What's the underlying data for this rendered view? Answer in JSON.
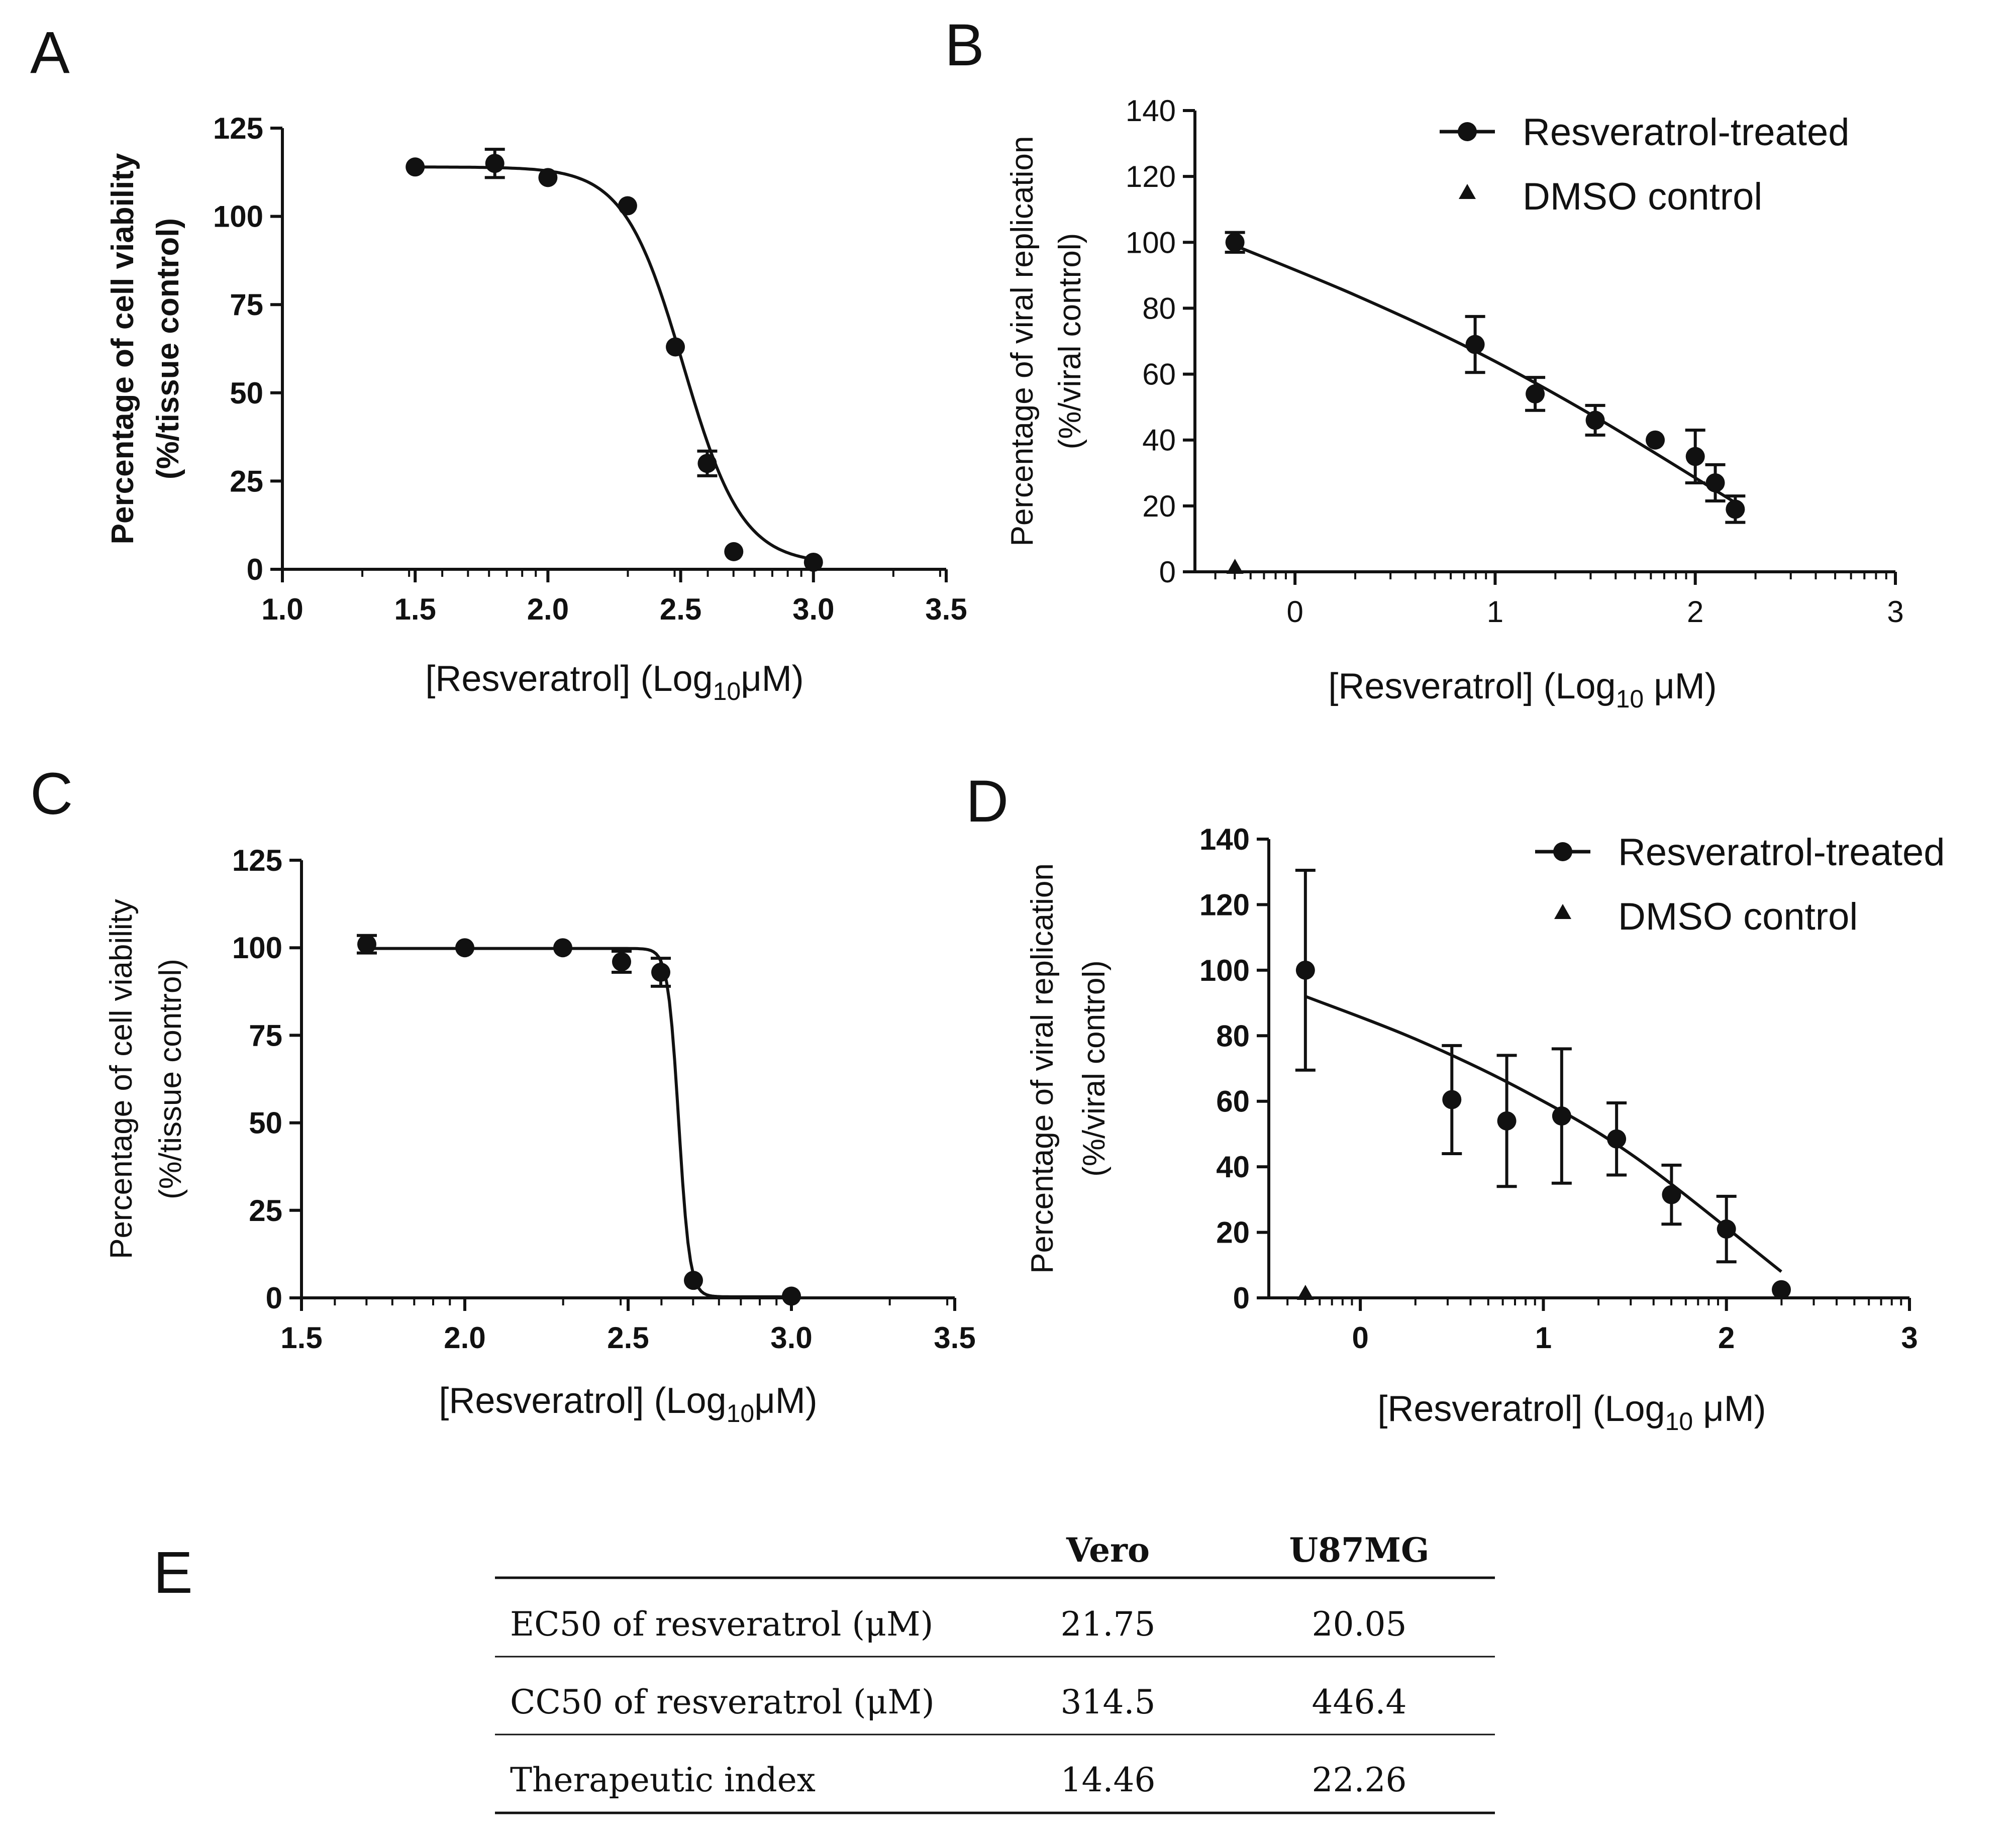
{
  "chart_data": [
    {
      "id": "A",
      "type": "scatter",
      "letter": "A",
      "title": "",
      "ylabel_line1": "Percentage of cell viability",
      "ylabel_line2": "(%/tissue control)",
      "ylabel_bold": true,
      "xlabel_main": "[Resveratrol] (Log",
      "xlabel_sub": "10",
      "xlabel_unit": "μM)",
      "xlim": [
        1.0,
        3.5
      ],
      "ylim": [
        0,
        125
      ],
      "xticks": [
        1.0,
        1.5,
        2.0,
        2.5,
        3.0,
        3.5
      ],
      "xtick_labels": [
        "1.0",
        "1.5",
        "2.0",
        "2.5",
        "3.0",
        "3.5"
      ],
      "yticks": [
        0,
        25,
        50,
        75,
        100,
        125
      ],
      "ytick_labels": [
        "0",
        "25",
        "50",
        "75",
        "100",
        "125"
      ],
      "tick_bold": true,
      "fit": {
        "model": "sigmoid",
        "top": 114,
        "bottom": 1.5,
        "center": 2.51,
        "slope": 9,
        "x_from": 1.5,
        "x_to": 3.0
      },
      "series": [
        {
          "name": "Cell viability",
          "marker": "circle",
          "x": [
            1.5,
            1.8,
            2.0,
            2.3,
            2.48,
            2.6,
            2.7,
            3.0
          ],
          "y": [
            114,
            115,
            111,
            103,
            63,
            30,
            5,
            2
          ],
          "err": [
            0,
            4,
            0,
            0,
            0,
            3.5,
            0,
            0
          ]
        }
      ]
    },
    {
      "id": "B",
      "type": "scatter",
      "letter": "B",
      "title": "",
      "ylabel_line1": "Percentage of viral replication",
      "ylabel_line2": "(%/viral control)",
      "ylabel_bold": false,
      "xlabel_main": "[Resveratrol] (Log",
      "xlabel_sub": "10",
      "xlabel_unit": " μM)",
      "xlim": [
        -0.5,
        3.0
      ],
      "ylim": [
        0,
        140
      ],
      "xticks": [
        0,
        1,
        2,
        3
      ],
      "xtick_labels": [
        "0",
        "1",
        "2",
        "3"
      ],
      "yticks": [
        0,
        20,
        40,
        60,
        80,
        100,
        120,
        140
      ],
      "ytick_labels": [
        "0",
        "20",
        "40",
        "60",
        "80",
        "100",
        "120",
        "140"
      ],
      "tick_bold": false,
      "fit": {
        "model": "points",
        "x": [
          -0.3,
          0.3,
          0.9,
          1.5,
          2.2
        ],
        "y": [
          99,
          84,
          67,
          47,
          21
        ]
      },
      "legend": [
        {
          "label": "Resveratrol-treated",
          "marker": "circle-line"
        },
        {
          "label": "DMSO control",
          "marker": "triangle"
        }
      ],
      "series": [
        {
          "name": "Resveratrol-treated",
          "marker": "circle",
          "x": [
            -0.3,
            0.9,
            1.2,
            1.5,
            1.8,
            2.0,
            2.1,
            2.2
          ],
          "y": [
            100,
            69,
            54,
            46,
            40,
            35,
            27,
            19
          ],
          "err": [
            3,
            8.5,
            5,
            4.5,
            0,
            8,
            5.5,
            4
          ]
        },
        {
          "name": "DMSO control",
          "marker": "triangle",
          "x": [
            -0.3
          ],
          "y": [
            0
          ],
          "err": [
            0
          ]
        }
      ]
    },
    {
      "id": "C",
      "type": "scatter",
      "letter": "C",
      "title": "",
      "ylabel_line1": "Percentage of cell viability",
      "ylabel_line2": "(%/tissue control)",
      "ylabel_bold": false,
      "xlabel_main": "[Resveratrol] (Log",
      "xlabel_sub": "10",
      "xlabel_unit": "μM)",
      "xlim": [
        1.5,
        3.5
      ],
      "ylim": [
        0,
        125
      ],
      "xticks": [
        1.5,
        2.0,
        2.5,
        3.0,
        3.5
      ],
      "xtick_labels": [
        "1.5",
        "2.0",
        "2.5",
        "3.0",
        "3.5"
      ],
      "yticks": [
        0,
        25,
        50,
        75,
        100,
        125
      ],
      "ytick_labels": [
        "0",
        "25",
        "50",
        "75",
        "100",
        "125"
      ],
      "tick_bold": true,
      "fit": {
        "model": "sigmoid",
        "top": 99.8,
        "bottom": 0.3,
        "center": 2.655,
        "slope": 60,
        "x_from": 1.7,
        "x_to": 3.0
      },
      "series": [
        {
          "name": "Cell viability",
          "marker": "circle",
          "x": [
            1.7,
            2.0,
            2.3,
            2.48,
            2.6,
            2.7,
            3.0
          ],
          "y": [
            101,
            100,
            100,
            96,
            93,
            5,
            0.5
          ],
          "err": [
            2.5,
            0,
            0,
            3,
            4,
            0,
            0
          ]
        }
      ]
    },
    {
      "id": "D",
      "type": "scatter",
      "letter": "D",
      "title": "",
      "ylabel_line1": "Percentage of viral replication",
      "ylabel_line2": "(%/viral control)",
      "ylabel_bold": false,
      "xlabel_main": "[Resveratrol] (Log",
      "xlabel_sub": "10",
      "xlabel_unit": " μM)",
      "xlim": [
        -0.5,
        3.0
      ],
      "ylim": [
        0,
        140
      ],
      "xticks": [
        0,
        1,
        2,
        3
      ],
      "xtick_labels": [
        "0",
        "1",
        "2",
        "3"
      ],
      "yticks": [
        0,
        20,
        40,
        60,
        80,
        100,
        120,
        140
      ],
      "ytick_labels": [
        "0",
        "20",
        "40",
        "60",
        "80",
        "100",
        "120",
        "140"
      ],
      "tick_bold": true,
      "fit": {
        "model": "points",
        "x": [
          -0.3,
          0.3,
          0.9,
          1.5,
          2.3
        ],
        "y": [
          92,
          79,
          63,
          43,
          8
        ]
      },
      "legend": [
        {
          "label": "Resveratrol-treated",
          "marker": "circle-line"
        },
        {
          "label": "DMSO control",
          "marker": "triangle"
        }
      ],
      "series": [
        {
          "name": "Resveratrol-treated",
          "marker": "circle",
          "x": [
            -0.3,
            0.5,
            0.8,
            1.1,
            1.4,
            1.7,
            2.0,
            2.3
          ],
          "y": [
            100,
            60.5,
            54,
            55.5,
            48.5,
            31.5,
            21,
            2.5
          ],
          "err": [
            30.5,
            16.5,
            20,
            20.5,
            11,
            9,
            10,
            0
          ]
        },
        {
          "name": "DMSO control",
          "marker": "triangle",
          "x": [
            -0.3
          ],
          "y": [
            0
          ],
          "err": [
            0
          ]
        }
      ]
    },
    {
      "id": "E",
      "type": "table",
      "letter": "E",
      "columns": [
        "",
        "Vero",
        "U87MG"
      ],
      "rows": [
        [
          "EC50 of resveratrol (μM)",
          "21.75",
          "20.05"
        ],
        [
          "CC50 of resveratrol (μM)",
          "314.5",
          "446.4"
        ],
        [
          "Therapeutic index",
          "14.46",
          "22.26"
        ]
      ]
    }
  ]
}
